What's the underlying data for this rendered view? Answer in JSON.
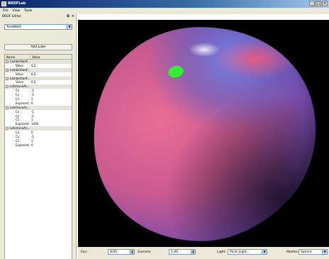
{
  "window": {
    "title": "BRDFLab"
  },
  "window_controls": {
    "minimize": "_",
    "maximize": "□",
    "close": "×"
  },
  "menu": [
    "File",
    "View",
    "Tools"
  ],
  "editor": {
    "title": "BRDF Editor",
    "float_glyph": "⧉",
    "close_glyph": "×",
    "brdf_select": "TestBRDF",
    "add_button": "Add Lobe",
    "headers": [
      "Name",
      "Value"
    ],
    "rows": [
      {
        "type": "group",
        "name": "LambertianF..."
      },
      {
        "type": "child",
        "name": "Value",
        "value": "0,2"
      },
      {
        "type": "group",
        "name": "LambertianF..."
      },
      {
        "type": "child",
        "name": "Value",
        "value": "0,2"
      },
      {
        "type": "group",
        "name": "LambertianF..."
      },
      {
        "type": "child",
        "name": "Value",
        "value": "0,5"
      },
      {
        "type": "group",
        "name": "LafortuneAn..."
      },
      {
        "type": "child",
        "name": "Cx",
        "value": "-1"
      },
      {
        "type": "child",
        "name": "Cy",
        "value": "-1"
      },
      {
        "type": "child",
        "name": "Cz",
        "value": "1"
      },
      {
        "type": "child",
        "name": "Exponent",
        "value": "0"
      },
      {
        "type": "group",
        "name": "LafortuneAn..."
      },
      {
        "type": "child",
        "name": "Cx",
        "value": "-1"
      },
      {
        "type": "child",
        "name": "Cy",
        "value": "-1"
      },
      {
        "type": "child",
        "name": "Cz",
        "value": "1"
      },
      {
        "type": "child",
        "name": "Exponent",
        "value": "1000"
      },
      {
        "type": "group",
        "name": "LafortuneAn..."
      },
      {
        "type": "child",
        "name": "Cx",
        "value": "0"
      },
      {
        "type": "child",
        "name": "Cy",
        "value": "-1"
      },
      {
        "type": "child",
        "name": "Cz",
        "value": "1"
      },
      {
        "type": "child",
        "name": "Exponent",
        "value": "0"
      }
    ]
  },
  "toolbar": {
    "fov_label": "Fov:",
    "fov_value": "8,00",
    "gamma_label": "Gamma:",
    "gamma_value": "1,00",
    "light_label": "Light:",
    "light_value": "Point Light",
    "models_label": "Models:",
    "models_value": "Sphere"
  },
  "colors": {
    "titlebar": "#0a246a",
    "panel": "#ece9d8",
    "viewport_bg": "#000000",
    "sphere_pink": "#d2557e",
    "sphere_blue": "#6a6fd6",
    "highlight_green": "#2ee82e"
  }
}
